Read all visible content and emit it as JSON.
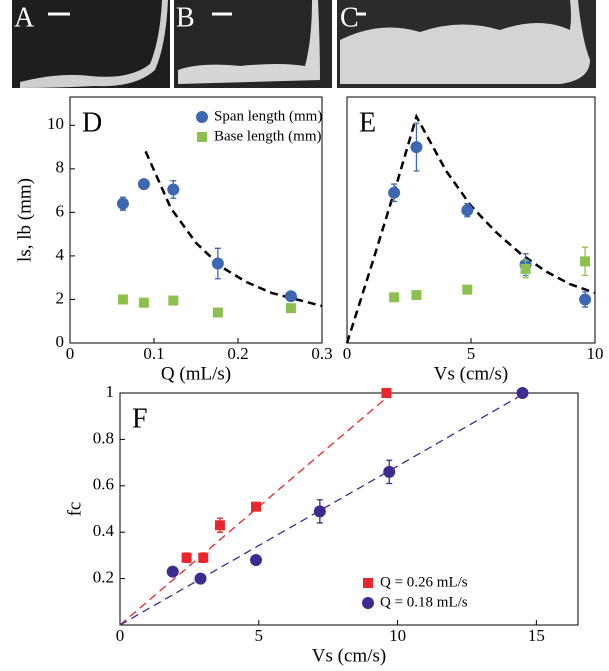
{
  "photo_labels": [
    "A",
    "B",
    "C"
  ],
  "chart_data": [
    {
      "type": "scatter",
      "panel_label": "D",
      "xlabel": "Q (mL/s)",
      "ylabel": "ls, lb (mm)",
      "xlim": [
        0,
        0.3
      ],
      "ylim": [
        0,
        11.3
      ],
      "xticks": [
        0,
        0.1,
        0.2,
        0.3
      ],
      "yticks": [
        0,
        2,
        4,
        6,
        8,
        10
      ],
      "legend": "upper right",
      "series": [
        {
          "name": "Span length (mm)",
          "color": "#3d68b1",
          "marker": "circle",
          "x": [
            0.063,
            0.088,
            0.123,
            0.176,
            0.263
          ],
          "values": [
            6.4,
            7.3,
            7.05,
            3.65,
            2.15
          ],
          "errors": [
            0.3,
            0.2,
            0.4,
            0.7,
            0.2
          ]
        },
        {
          "name": "Base length (mm)",
          "color": "#8dc14f",
          "marker": "square",
          "x": [
            0.063,
            0.088,
            0.123,
            0.176,
            0.263
          ],
          "values": [
            2.0,
            1.85,
            1.95,
            1.4,
            1.6
          ],
          "errors": [
            0,
            0,
            0,
            0,
            0
          ]
        }
      ],
      "fits": [
        {
          "color": "#000000",
          "x": [
            0.09,
            0.12,
            0.15,
            0.18,
            0.21,
            0.24,
            0.27,
            0.3
          ],
          "values": [
            8.8,
            6.2,
            4.6,
            3.5,
            2.8,
            2.3,
            2.0,
            1.7
          ]
        }
      ]
    },
    {
      "type": "scatter",
      "panel_label": "E",
      "xlabel": "Vs (cm/s)",
      "xlim": [
        0,
        10
      ],
      "ylim": [
        0,
        11.3
      ],
      "xticks": [
        0,
        5,
        10
      ],
      "series": [
        {
          "color": "#3d68b1",
          "marker": "circle",
          "x": [
            1.9,
            2.8,
            4.85,
            7.2,
            9.6
          ],
          "values": [
            6.9,
            9.0,
            6.1,
            3.6,
            2.0
          ],
          "errors": [
            0.4,
            1.1,
            0.3,
            0.5,
            0.35
          ]
        },
        {
          "color": "#8dc14f",
          "marker": "square",
          "x": [
            1.9,
            2.8,
            4.85,
            7.2,
            9.6
          ],
          "values": [
            2.1,
            2.2,
            2.45,
            3.4,
            3.75
          ],
          "errors": [
            0,
            0,
            0,
            0.4,
            0.65
          ]
        }
      ],
      "fits": [
        {
          "color": "#000000",
          "x": [
            0,
            1,
            2,
            2.8,
            4,
            5,
            6,
            7,
            8,
            9,
            10
          ],
          "values": [
            0,
            3.6,
            7.3,
            10.4,
            7.9,
            6.3,
            5.1,
            4.1,
            3.3,
            2.7,
            2.3
          ]
        }
      ]
    },
    {
      "type": "scatter",
      "panel_label": "F",
      "xlabel": "Vs (cm/s)",
      "ylabel": "fc",
      "xlim": [
        0,
        16.5
      ],
      "ylim": [
        0,
        1
      ],
      "xticks": [
        0,
        5,
        10,
        15
      ],
      "yticks": [
        0.2,
        0.4,
        0.6,
        0.8,
        1
      ],
      "legend": "lower right",
      "series": [
        {
          "name": "Q = 0.26 mL/s",
          "color": "#e8262b",
          "marker": "square",
          "x": [
            2.4,
            3.0,
            3.6,
            4.9,
            9.6
          ],
          "values": [
            0.29,
            0.29,
            0.43,
            0.51,
            1.0
          ],
          "errors": [
            0.02,
            0.02,
            0.03,
            0,
            0
          ]
        },
        {
          "name": "Q = 0.18 mL/s",
          "color": "#3f2b8f",
          "marker": "circle",
          "x": [
            1.9,
            2.9,
            4.9,
            7.2,
            9.7,
            14.5
          ],
          "values": [
            0.23,
            0.2,
            0.28,
            0.49,
            0.66,
            1.0
          ],
          "errors": [
            0,
            0,
            0,
            0.05,
            0.05,
            0
          ]
        }
      ],
      "fits": [
        {
          "color": "#e8262b",
          "x": [
            0,
            9.8
          ],
          "values": [
            0,
            1.0
          ]
        },
        {
          "color": "#3f2b8f",
          "x": [
            0,
            14.6
          ],
          "values": [
            0,
            1.0
          ]
        }
      ]
    }
  ]
}
